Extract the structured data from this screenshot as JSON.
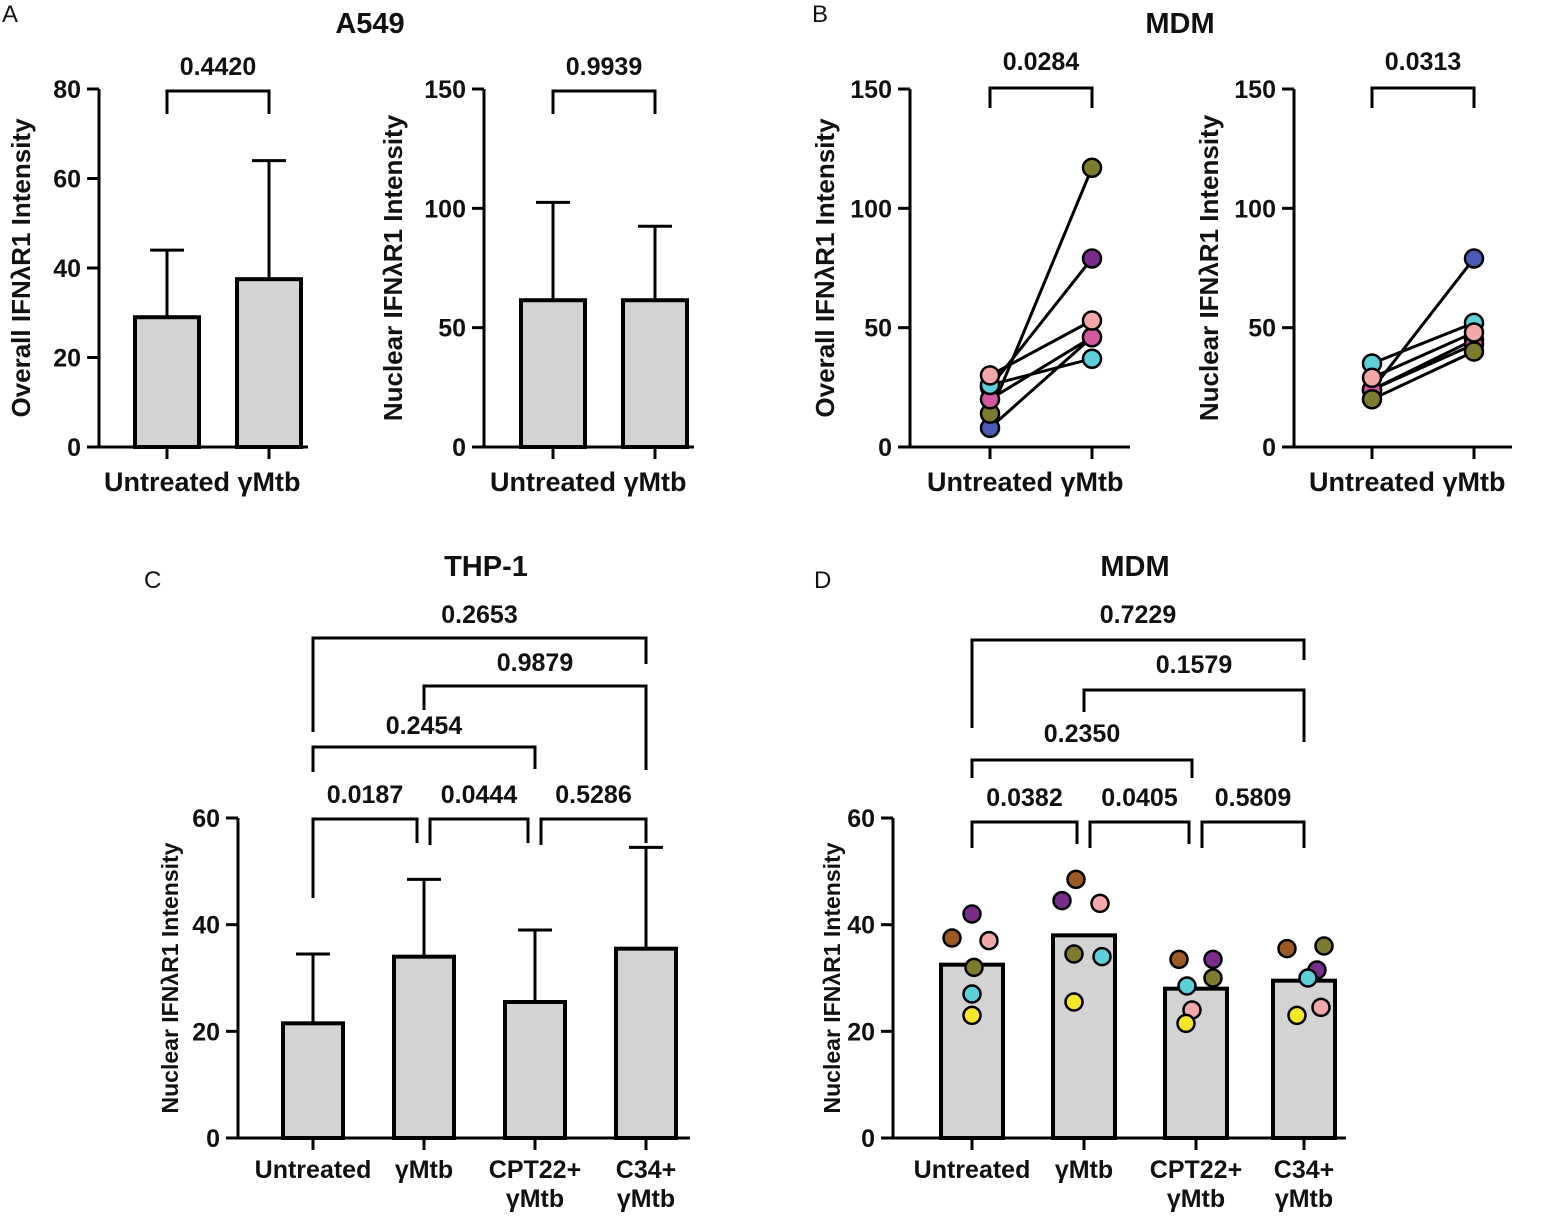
{
  "colors": {
    "bar_fill": "#d3d3d3",
    "axis": "#000000",
    "donor_blue": "#4a5bb5",
    "donor_purple": "#7b2d8e",
    "donor_pink": "#f2a8a8",
    "donor_magenta": "#d15a9e",
    "donor_cyan": "#5ccfd8",
    "donor_olive": "#7e7a2e",
    "donor_brown": "#9a5a22",
    "donor_yellow": "#f5e62a"
  },
  "chart_data": [
    {
      "panel": "A",
      "title": "A549",
      "type": "bar",
      "ylabel": "Overall IFNλR1 Intensity",
      "categories": [
        "Untreated",
        "γMtb"
      ],
      "values": [
        29,
        37.5
      ],
      "error": [
        15,
        26.5
      ],
      "ylim": [
        0,
        80
      ],
      "yticks": [
        0,
        20,
        40,
        60,
        80
      ],
      "comparisons": [
        {
          "from": 0,
          "to": 1,
          "p": "0.4420"
        }
      ]
    },
    {
      "panel": "A",
      "title": "",
      "type": "bar",
      "ylabel": "Nuclear IFNλR1 Intensity",
      "categories": [
        "Untreated",
        "γMtb"
      ],
      "values": [
        61.5,
        61.5
      ],
      "error": [
        41,
        31
      ],
      "ylim": [
        0,
        150
      ],
      "yticks": [
        0,
        50,
        100,
        150
      ],
      "comparisons": [
        {
          "from": 0,
          "to": 1,
          "p": "0.9939"
        }
      ]
    },
    {
      "panel": "B",
      "title": "MDM",
      "type": "paired-line",
      "ylabel": "Overall IFNλR1 Intensity",
      "categories": [
        "Untreated",
        "γMtb"
      ],
      "ylim": [
        0,
        150
      ],
      "yticks": [
        0,
        50,
        100,
        150
      ],
      "pairs": [
        {
          "donor": "blue",
          "values": [
            8,
            46
          ]
        },
        {
          "donor": "purple",
          "values": [
            25,
            79
          ]
        },
        {
          "donor": "olive",
          "values": [
            14,
            117
          ]
        },
        {
          "donor": "magenta",
          "values": [
            20,
            46
          ]
        },
        {
          "donor": "cyan",
          "values": [
            26,
            37
          ]
        },
        {
          "donor": "pink",
          "values": [
            30,
            53
          ]
        }
      ],
      "comparisons": [
        {
          "from": 0,
          "to": 1,
          "p": "0.0284"
        }
      ]
    },
    {
      "panel": "B",
      "title": "",
      "type": "paired-line",
      "ylabel": "Nuclear IFNλR1 Intensity",
      "categories": [
        "Untreated",
        "γMtb"
      ],
      "ylim": [
        0,
        150
      ],
      "yticks": [
        0,
        50,
        100,
        150
      ],
      "pairs": [
        {
          "donor": "blue",
          "values": [
            24,
            79
          ]
        },
        {
          "donor": "cyan",
          "values": [
            35,
            52
          ]
        },
        {
          "donor": "purple",
          "values": [
            24,
            45
          ]
        },
        {
          "donor": "magenta",
          "values": [
            24,
            43
          ]
        },
        {
          "donor": "pink",
          "values": [
            29,
            48
          ]
        },
        {
          "donor": "olive",
          "values": [
            20,
            40
          ]
        }
      ],
      "comparisons": [
        {
          "from": 0,
          "to": 1,
          "p": "0.0313"
        }
      ]
    },
    {
      "panel": "C",
      "title": "THP-1",
      "type": "bar",
      "ylabel": "Nuclear IFNλR1 Intensity",
      "categories": [
        [
          "Untreated"
        ],
        [
          "γMtb"
        ],
        [
          "CPT22+",
          "γMtb"
        ],
        [
          "C34+",
          "γMtb"
        ]
      ],
      "values": [
        21.5,
        34,
        25.5,
        35.5
      ],
      "error": [
        13,
        14.5,
        13.5,
        19
      ],
      "ylim": [
        0,
        60
      ],
      "yticks": [
        0,
        20,
        40,
        60
      ],
      "comparisons": [
        {
          "from": 0,
          "to": 1,
          "p": "0.0187"
        },
        {
          "from": 1,
          "to": 2,
          "p": "0.0444"
        },
        {
          "from": 2,
          "to": 3,
          "p": "0.5286"
        },
        {
          "from": 0,
          "to": 2,
          "p": "0.2454"
        },
        {
          "from": 1,
          "to": 3,
          "p": "0.9879"
        },
        {
          "from": 0,
          "to": 3,
          "p": "0.2653"
        }
      ]
    },
    {
      "panel": "D",
      "title": "MDM",
      "type": "bar",
      "ylabel": "Nuclear IFNλR1 Intensity",
      "categories": [
        [
          "Untreated"
        ],
        [
          "γMtb"
        ],
        [
          "CPT22+",
          "γMtb"
        ],
        [
          "C34+",
          "γMtb"
        ]
      ],
      "values": [
        32.5,
        38,
        28,
        29.5
      ],
      "points": [
        [
          {
            "donor": "purple",
            "value": 42
          },
          {
            "donor": "brown",
            "value": 37.5
          },
          {
            "donor": "pink",
            "value": 37
          },
          {
            "donor": "olive",
            "value": 32
          },
          {
            "donor": "cyan",
            "value": 27
          },
          {
            "donor": "yellow",
            "value": 23
          }
        ],
        [
          {
            "donor": "brown",
            "value": 48.5
          },
          {
            "donor": "purple",
            "value": 44.5
          },
          {
            "donor": "pink",
            "value": 44
          },
          {
            "donor": "olive",
            "value": 34.5
          },
          {
            "donor": "cyan",
            "value": 34
          },
          {
            "donor": "yellow",
            "value": 25.5
          }
        ],
        [
          {
            "donor": "brown",
            "value": 33.5
          },
          {
            "donor": "purple",
            "value": 33.5
          },
          {
            "donor": "olive",
            "value": 30
          },
          {
            "donor": "cyan",
            "value": 28.5
          },
          {
            "donor": "pink",
            "value": 24
          },
          {
            "donor": "yellow",
            "value": 21.5
          }
        ],
        [
          {
            "donor": "brown",
            "value": 35.5
          },
          {
            "donor": "olive",
            "value": 36
          },
          {
            "donor": "purple",
            "value": 31.5
          },
          {
            "donor": "cyan",
            "value": 30
          },
          {
            "donor": "pink",
            "value": 24.5
          },
          {
            "donor": "yellow",
            "value": 23
          }
        ]
      ],
      "ylim": [
        0,
        60
      ],
      "yticks": [
        0,
        20,
        40,
        60
      ],
      "comparisons": [
        {
          "from": 0,
          "to": 1,
          "p": "0.0382"
        },
        {
          "from": 1,
          "to": 2,
          "p": "0.0405"
        },
        {
          "from": 2,
          "to": 3,
          "p": "0.5809"
        },
        {
          "from": 0,
          "to": 2,
          "p": "0.2350"
        },
        {
          "from": 1,
          "to": 3,
          "p": "0.1579"
        },
        {
          "from": 0,
          "to": 3,
          "p": "0.7229"
        }
      ]
    }
  ],
  "panels": {
    "a": {
      "letter": "A",
      "title": "A549"
    },
    "b": {
      "letter": "B",
      "title": "MDM"
    },
    "c": {
      "letter": "C",
      "title": "THP-1"
    },
    "d": {
      "letter": "D",
      "title": "MDM"
    }
  }
}
